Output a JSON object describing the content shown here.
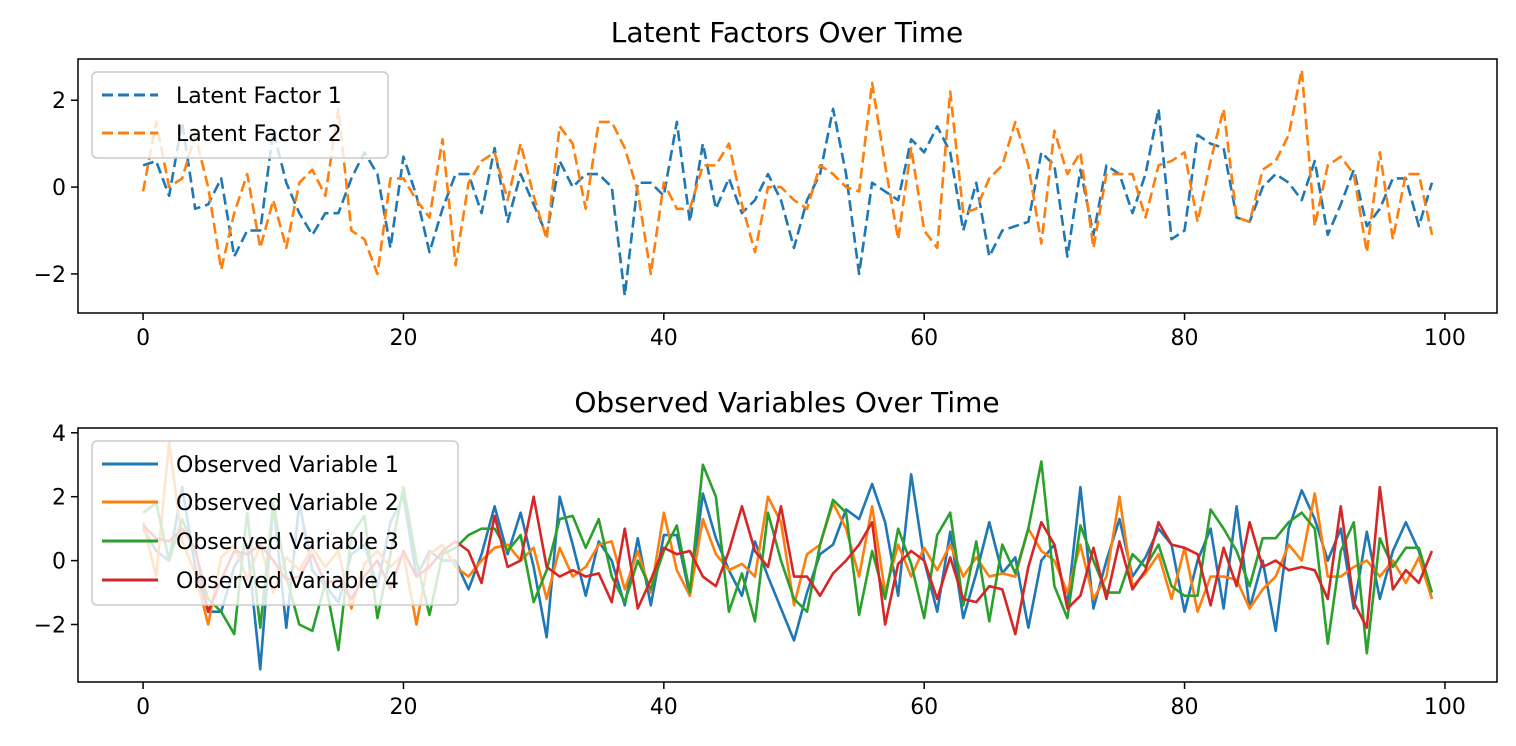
{
  "chart_data": [
    {
      "type": "line",
      "title": "Latent Factors Over Time",
      "xlabel": "",
      "ylabel": "",
      "xlim": [
        -5,
        104
      ],
      "ylim": [
        -2.9,
        2.95
      ],
      "xticks": [
        0,
        20,
        40,
        60,
        80,
        100
      ],
      "xtick_labels": [
        "0",
        "20",
        "40",
        "60",
        "80",
        "100"
      ],
      "yticks": [
        -2,
        0,
        2
      ],
      "ytick_labels": [
        "−2",
        "0",
        "2"
      ],
      "grid": false,
      "legend_placement": "upper-left",
      "line_style": "dashed",
      "series": [
        {
          "name": "Latent Factor 1",
          "color": "#1f77b4",
          "values": [
            0.5,
            0.6,
            -0.2,
            1.5,
            -0.5,
            -0.4,
            0.2,
            -1.6,
            -1.0,
            -1.0,
            1.3,
            0.1,
            -0.6,
            -1.1,
            -0.6,
            -0.6,
            0.2,
            0.8,
            0.3,
            -1.4,
            0.7,
            -0.2,
            -1.5,
            -0.5,
            0.3,
            0.3,
            -0.6,
            0.9,
            -0.8,
            0.3,
            -0.4,
            -1.1,
            0.6,
            0.0,
            0.3,
            0.3,
            0.0,
            -2.5,
            0.1,
            0.1,
            -0.2,
            1.5,
            -0.8,
            1.0,
            -0.5,
            0.2,
            -0.6,
            -0.3,
            0.3,
            -0.3,
            -1.4,
            -0.3,
            0.3,
            1.8,
            0.3,
            -2.0,
            0.1,
            -0.1,
            -0.3,
            1.1,
            0.8,
            1.4,
            0.8,
            -1.0,
            0.1,
            -1.6,
            -1.0,
            -0.9,
            -0.8,
            0.8,
            0.5,
            -1.6,
            0.4,
            -1.1,
            0.5,
            0.3,
            -0.6,
            0.3,
            1.8,
            -1.2,
            -1.0,
            1.2,
            1.0,
            0.9,
            -0.7,
            -0.8,
            0.0,
            0.3,
            0.1,
            -0.3,
            0.6,
            -1.1,
            -0.4,
            0.4,
            -0.9,
            -0.5,
            0.2,
            0.2,
            -0.9,
            0.1
          ]
        },
        {
          "name": "Latent Factor 2",
          "color": "#ff7f0e",
          "values": [
            -0.1,
            1.5,
            0.0,
            0.2,
            1.2,
            0.0,
            -1.9,
            -0.6,
            0.3,
            -1.4,
            -0.3,
            -1.4,
            0.1,
            0.4,
            -0.2,
            1.8,
            -1.0,
            -1.2,
            -2.0,
            0.2,
            0.2,
            -0.3,
            -0.7,
            1.1,
            -1.8,
            0.1,
            0.6,
            0.8,
            -0.3,
            1.0,
            -0.2,
            -1.2,
            1.4,
            1.0,
            -0.5,
            1.5,
            1.5,
            0.9,
            -0.1,
            -2.0,
            0.1,
            -0.5,
            -0.5,
            0.5,
            0.5,
            1.0,
            -0.4,
            -1.5,
            0.0,
            0.0,
            -0.3,
            -0.5,
            0.5,
            0.3,
            0.0,
            -0.1,
            2.4,
            0.5,
            -1.2,
            0.9,
            -1.0,
            -1.4,
            2.2,
            -0.6,
            -0.5,
            0.2,
            0.5,
            1.5,
            0.5,
            -1.3,
            1.3,
            0.3,
            0.8,
            -1.4,
            0.3,
            0.3,
            0.3,
            -0.7,
            0.5,
            0.6,
            0.8,
            -0.8,
            0.6,
            1.8,
            -0.7,
            -0.8,
            0.4,
            0.6,
            1.2,
            2.7,
            -0.9,
            0.5,
            0.7,
            0.3,
            -1.5,
            0.8,
            -1.2,
            0.3,
            0.3,
            -1.1
          ]
        }
      ]
    },
    {
      "type": "line",
      "title": "Observed Variables Over Time",
      "xlabel": "",
      "ylabel": "",
      "xlim": [
        -5,
        104
      ],
      "ylim": [
        -3.8,
        4.15
      ],
      "xticks": [
        0,
        20,
        40,
        60,
        80,
        100
      ],
      "xtick_labels": [
        "0",
        "20",
        "40",
        "60",
        "80",
        "100"
      ],
      "yticks": [
        -2,
        0,
        2,
        4
      ],
      "ytick_labels": [
        "−2",
        "0",
        "2",
        "4"
      ],
      "grid": false,
      "legend_placement": "upper-left",
      "line_style": "solid",
      "series": [
        {
          "name": "Observed Variable 1",
          "color": "#1f77b4",
          "values": [
            1.0,
            0.3,
            0.0,
            2.3,
            -0.2,
            -1.6,
            -1.6,
            -0.2,
            0.5,
            -3.4,
            1.8,
            -2.1,
            1.8,
            -0.3,
            -0.8,
            -1.3,
            0.2,
            0.5,
            -0.8,
            1.2,
            2.0,
            -0.5,
            0.3,
            0.0,
            0.0,
            -0.9,
            0.2,
            1.7,
            0.2,
            1.5,
            -0.2,
            -2.4,
            2.0,
            0.5,
            -1.1,
            0.6,
            0.0,
            -1.4,
            0.7,
            -1.4,
            0.8,
            0.8,
            -1.1,
            2.1,
            0.7,
            -0.3,
            -1.1,
            0.6,
            -0.5,
            -1.5,
            -2.5,
            -1.0,
            0.2,
            0.5,
            1.6,
            1.3,
            2.4,
            1.2,
            -1.1,
            2.7,
            0.0,
            -1.6,
            0.9,
            -1.8,
            -0.4,
            1.2,
            -0.4,
            0.1,
            -2.1,
            0.0,
            0.5,
            -1.4,
            2.3,
            -1.5,
            0.0,
            1.3,
            -0.5,
            0.1,
            1.0,
            0.5,
            -1.6,
            0.0,
            1.0,
            -1.5,
            1.7,
            -1.5,
            0.0,
            -2.2,
            1.0,
            2.2,
            1.3,
            0.0,
            1.0,
            -1.5,
            0.9,
            -1.2,
            0.3,
            1.2,
            0.3,
            -1.2
          ]
        },
        {
          "name": "Observed Variable 2",
          "color": "#ff7f0e",
          "values": [
            1.2,
            -0.5,
            3.7,
            0.6,
            -0.4,
            -2.0,
            0.1,
            0.5,
            -0.6,
            0.5,
            -1.0,
            0.1,
            -0.3,
            0.4,
            -0.2,
            0.3,
            -1.5,
            -0.1,
            0.3,
            -0.2,
            0.2,
            -2.0,
            0.2,
            0.5,
            -0.2,
            -0.5,
            0.0,
            0.4,
            0.5,
            0.0,
            0.4,
            -1.2,
            0.4,
            -0.5,
            -0.2,
            0.5,
            0.6,
            -0.9,
            0.3,
            -1.0,
            1.5,
            -0.3,
            -1.1,
            1.3,
            0.2,
            -0.3,
            -0.1,
            -0.5,
            2.0,
            1.2,
            -1.4,
            0.2,
            0.5,
            1.8,
            1.0,
            -0.5,
            1.7,
            -1.0,
            0.5,
            -0.5,
            0.4,
            -0.3,
            0.5,
            -0.5,
            0.1,
            -0.5,
            -0.4,
            -0.5,
            1.0,
            0.3,
            0.0,
            -1.0,
            0.5,
            -1.2,
            -0.5,
            2.0,
            -0.8,
            -0.4,
            0.2,
            -1.2,
            0.4,
            -1.6,
            -0.5,
            -0.5,
            -0.6,
            -1.5,
            -0.9,
            -0.5,
            0.5,
            0.0,
            2.1,
            -0.5,
            -0.5,
            -0.2,
            0.0,
            -0.5,
            0.0,
            -0.7,
            0.1,
            -1.2
          ]
        },
        {
          "name": "Observed Variable 3",
          "color": "#2ca02c",
          "values": [
            1.5,
            1.8,
            0.0,
            1.3,
            0.3,
            -1.2,
            -1.6,
            -2.3,
            1.5,
            -2.1,
            1.8,
            -0.5,
            -2.0,
            -2.2,
            -0.7,
            -2.8,
            0.8,
            1.4,
            -1.8,
            0.2,
            2.3,
            0.0,
            -1.7,
            0.2,
            0.4,
            0.8,
            1.0,
            1.0,
            0.3,
            0.8,
            -1.3,
            -0.3,
            1.3,
            1.4,
            0.4,
            1.3,
            -0.5,
            -1.3,
            0.0,
            -0.9,
            0.3,
            1.1,
            -1.0,
            3.0,
            2.0,
            -1.6,
            -0.4,
            -1.9,
            1.5,
            0.0,
            -1.2,
            -1.6,
            0.5,
            1.9,
            1.5,
            -1.7,
            0.3,
            -1.2,
            1.0,
            -0.1,
            -1.8,
            0.8,
            1.5,
            -1.4,
            0.6,
            -1.9,
            0.5,
            -0.4,
            1.0,
            3.1,
            -0.8,
            -1.8,
            1.1,
            0.0,
            -1.0,
            -1.0,
            0.2,
            -0.2,
            0.5,
            -0.8,
            -1.1,
            -1.1,
            1.6,
            1.0,
            0.3,
            -0.8,
            0.7,
            0.7,
            1.2,
            1.5,
            1.0,
            -2.6,
            0.3,
            1.2,
            -2.9,
            0.7,
            -0.2,
            0.4,
            0.4,
            -1.0
          ]
        },
        {
          "name": "Observed Variable 4",
          "color": "#d62728",
          "values": [
            1.1,
            0.7,
            0.6,
            1.0,
            0.4,
            -1.6,
            -0.6,
            0.3,
            0.2,
            0.5,
            0.0,
            -0.6,
            -0.5,
            0.2,
            -0.7,
            -0.6,
            -1.2,
            -0.5,
            0.0,
            -0.9,
            0.3,
            -0.5,
            -0.2,
            0.3,
            0.6,
            0.3,
            -0.7,
            1.4,
            -0.2,
            0.0,
            2.0,
            -0.2,
            -0.5,
            -0.3,
            -0.5,
            -0.4,
            -1.3,
            1.0,
            -1.5,
            -0.6,
            0.4,
            0.2,
            0.3,
            -0.5,
            -0.8,
            0.3,
            1.7,
            0.3,
            -0.2,
            1.7,
            -0.5,
            -0.5,
            -1.1,
            -0.4,
            0.0,
            0.5,
            1.2,
            -2.0,
            -0.1,
            0.3,
            0.0,
            -1.2,
            0.1,
            -1.2,
            -1.3,
            -0.8,
            -0.9,
            -2.3,
            -0.2,
            1.2,
            0.5,
            -1.5,
            -1.1,
            0.4,
            -1.2,
            0.6,
            -0.9,
            -0.3,
            1.2,
            0.5,
            0.4,
            0.2,
            -1.4,
            0.4,
            -0.8,
            1.2,
            -0.2,
            0.0,
            -0.3,
            -0.2,
            -0.3,
            -1.2,
            1.7,
            -1.3,
            -2.1,
            2.3,
            -0.9,
            -0.3,
            -0.7,
            0.3
          ]
        }
      ]
    }
  ]
}
